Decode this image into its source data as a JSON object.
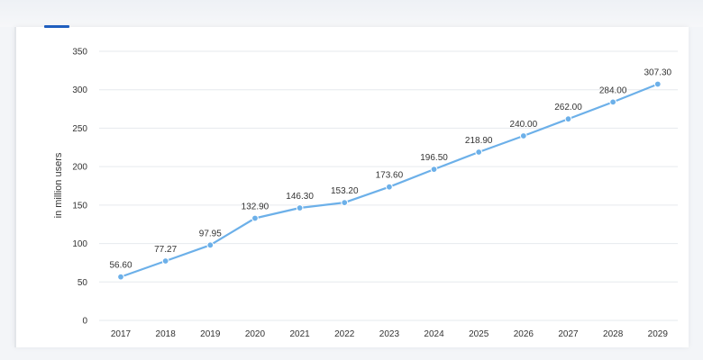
{
  "colors": {
    "series": "#6cb0e9",
    "grid": "#e6e9ee",
    "tab_accent": "#1f5fbf"
  },
  "chart_data": {
    "type": "line",
    "ylabel": "in million users",
    "xlabel": "",
    "ylim": [
      0,
      350
    ],
    "y_ticks": [
      "0",
      "50",
      "100",
      "150",
      "200",
      "250",
      "300",
      "350"
    ],
    "y_tick_values": [
      0,
      50,
      100,
      150,
      200,
      250,
      300,
      350
    ],
    "categories": [
      "2017",
      "2018",
      "2019",
      "2020",
      "2021",
      "2022",
      "2023",
      "2024",
      "2025",
      "2026",
      "2027",
      "2028",
      "2029"
    ],
    "values": [
      56.6,
      77.27,
      97.95,
      132.9,
      146.3,
      153.2,
      173.6,
      196.5,
      218.9,
      240.0,
      262.0,
      284.0,
      307.3
    ],
    "data_labels": [
      "56.60",
      "77.27",
      "97.95",
      "132.90",
      "146.30",
      "153.20",
      "173.60",
      "196.50",
      "218.90",
      "240.00",
      "262.00",
      "284.00",
      "307.30"
    ],
    "grid": true,
    "legend": "none"
  }
}
